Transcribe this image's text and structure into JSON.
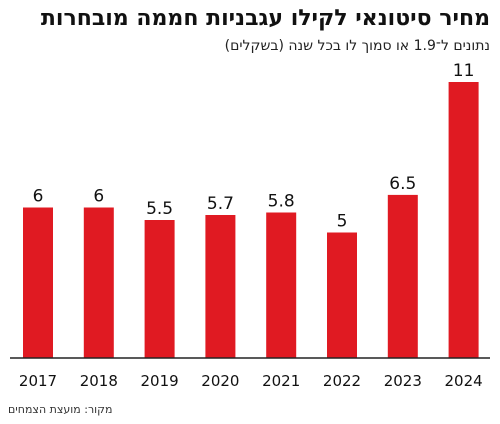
{
  "header": {
    "title": "מחיר סיטונאי לקילו עגבניות חממה מובחרות",
    "subtitle": "נתונים ל־1.9 או סמוך לו בכל שנה (בשקלים)"
  },
  "footer": {
    "source": "מקור: מועצת הצמחים"
  },
  "colors": {
    "bar": "#e01a22",
    "axis": "#222222"
  },
  "chart_data": {
    "type": "bar",
    "title": "מחיר סיטונאי לקילו עגבניות חממה מובחרות",
    "subtitle": "נתונים ל־1.9 או סמוך לו בכל שנה (בשקלים)",
    "categories": [
      "2017",
      "2018",
      "2019",
      "2020",
      "2021",
      "2022",
      "2023",
      "2024"
    ],
    "values": [
      6,
      6,
      5.5,
      5.7,
      5.8,
      5,
      6.5,
      11
    ],
    "value_labels": [
      "6",
      "6",
      "5.5",
      "5.7",
      "5.8",
      "5",
      "6.5",
      "11"
    ],
    "ylim": [
      0,
      11
    ],
    "grid": false,
    "legend": "none"
  }
}
